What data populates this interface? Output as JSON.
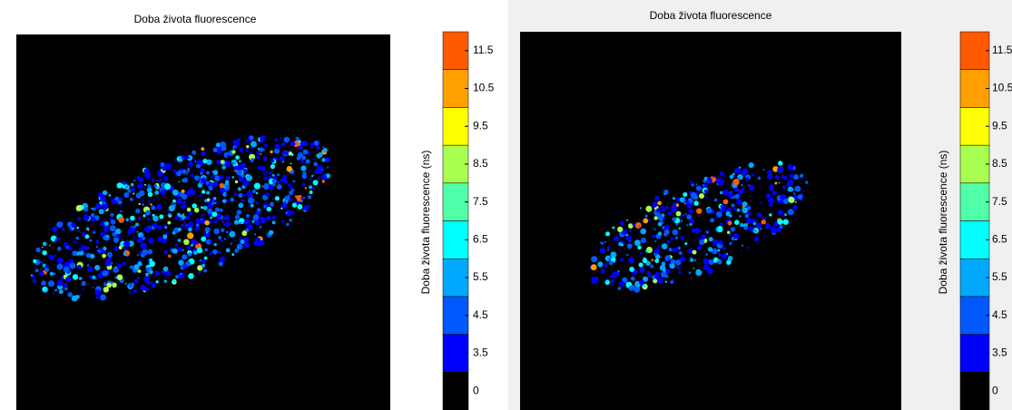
{
  "panels": [
    {
      "title": "Doba života fluorescence",
      "colorbar": {
        "label": "Doba života fluorescence (ns)",
        "ticks": [
          0,
          3.5,
          4.5,
          5.5,
          6.5,
          7.5,
          8.5,
          9.5,
          10.5,
          11.5
        ],
        "colors": [
          "#000000",
          "#0000ff",
          "#0058ff",
          "#00a8ff",
          "#00ffff",
          "#50ffa8",
          "#a8ff50",
          "#ffff00",
          "#ffa000",
          "#ff5a00"
        ]
      }
    },
    {
      "title": "Doba života fluorescence",
      "colorbar": {
        "label": "Doba života fluorescence (ns)",
        "ticks": [
          0,
          3.5,
          4.5,
          5.5,
          6.5,
          7.5,
          8.5,
          9.5,
          10.5,
          11.5
        ],
        "colors": [
          "#000000",
          "#0000ff",
          "#0058ff",
          "#00a8ff",
          "#00ffff",
          "#50ffa8",
          "#a8ff50",
          "#ffff00",
          "#ffa000",
          "#ff5a00"
        ]
      }
    }
  ]
}
